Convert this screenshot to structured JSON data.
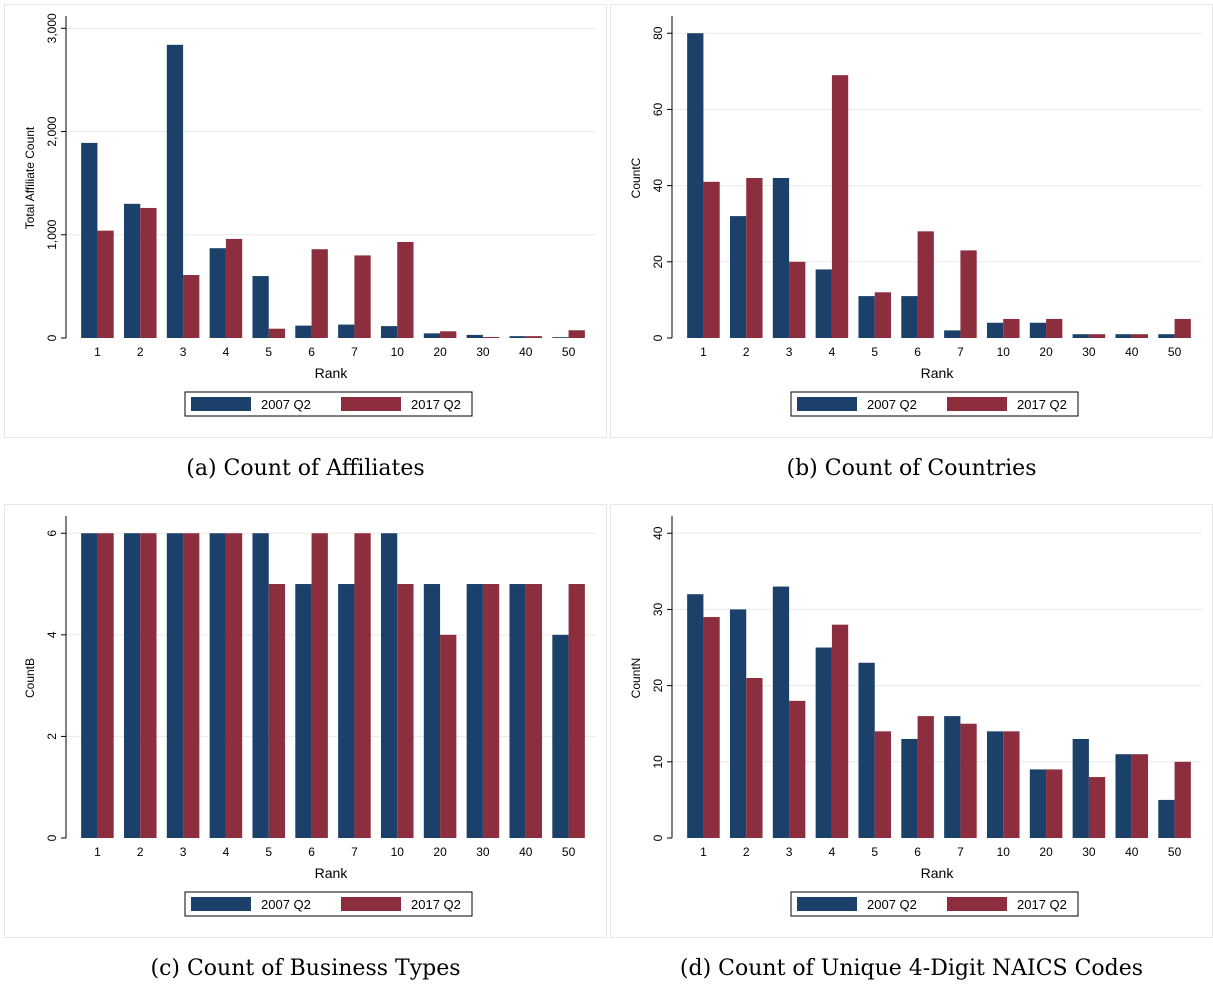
{
  "colors": {
    "series_2007": "#1b416b",
    "series_2017": "#8c2e3d",
    "grid": "#eaeaea",
    "frame": "#e6e6e6"
  },
  "chart_data": [
    {
      "type": "bar",
      "caption": "(a) Count of Affiliates",
      "xlabel": "Rank",
      "ylabel": "Total Affiliate Count",
      "categories": [
        "1",
        "2",
        "3",
        "4",
        "5",
        "6",
        "7",
        "10",
        "20",
        "30",
        "40",
        "50"
      ],
      "ylim": [
        0,
        3100
      ],
      "yticks": [
        0,
        1000,
        2000,
        3000
      ],
      "yticklabels": [
        "0",
        "1,000",
        "2,000",
        "3,000"
      ],
      "grid": true,
      "legend": "bottom",
      "series": [
        {
          "name": "2007 Q2",
          "values": [
            1890,
            1300,
            2840,
            870,
            600,
            120,
            130,
            115,
            45,
            30,
            18,
            8
          ]
        },
        {
          "name": "2017 Q2",
          "values": [
            1040,
            1260,
            610,
            960,
            90,
            860,
            800,
            930,
            65,
            10,
            18,
            75
          ]
        }
      ]
    },
    {
      "type": "bar",
      "caption": "(b) Count of Countries",
      "xlabel": "Rank",
      "ylabel": "CountC",
      "categories": [
        "1",
        "2",
        "3",
        "4",
        "5",
        "6",
        "7",
        "10",
        "20",
        "30",
        "40",
        "50"
      ],
      "ylim": [
        0,
        84
      ],
      "yticks": [
        0,
        20,
        40,
        60,
        80
      ],
      "yticklabels": [
        "0",
        "20",
        "40",
        "60",
        "80"
      ],
      "grid": true,
      "legend": "bottom",
      "series": [
        {
          "name": "2007 Q2",
          "values": [
            80,
            32,
            42,
            18,
            11,
            11,
            2,
            4,
            4,
            1,
            1,
            1
          ]
        },
        {
          "name": "2017 Q2",
          "values": [
            41,
            42,
            20,
            69,
            12,
            28,
            23,
            5,
            5,
            1,
            1,
            5
          ]
        }
      ]
    },
    {
      "type": "bar",
      "caption": "(c) Count of Business Types",
      "xlabel": "Rank",
      "ylabel": "CountB",
      "categories": [
        "1",
        "2",
        "3",
        "4",
        "5",
        "6",
        "7",
        "10",
        "20",
        "30",
        "40",
        "50"
      ],
      "ylim": [
        0,
        6.3
      ],
      "yticks": [
        0,
        2,
        4,
        6
      ],
      "yticklabels": [
        "0",
        "2",
        "4",
        "6"
      ],
      "grid": true,
      "legend": "bottom",
      "series": [
        {
          "name": "2007 Q2",
          "values": [
            6,
            6,
            6,
            6,
            6,
            5,
            5,
            6,
            5,
            5,
            5,
            4
          ]
        },
        {
          "name": "2017 Q2",
          "values": [
            6,
            6,
            6,
            6,
            5,
            6,
            6,
            5,
            4,
            5,
            5,
            5
          ]
        }
      ]
    },
    {
      "type": "bar",
      "caption": "(d) Count of Unique 4-Digit NAICS Codes",
      "xlabel": "Rank",
      "ylabel": "CountN",
      "categories": [
        "1",
        "2",
        "3",
        "4",
        "5",
        "6",
        "7",
        "10",
        "20",
        "30",
        "40",
        "50"
      ],
      "ylim": [
        0,
        42
      ],
      "yticks": [
        0,
        10,
        20,
        30,
        40
      ],
      "yticklabels": [
        "0",
        "10",
        "20",
        "30",
        "40"
      ],
      "grid": true,
      "legend": "bottom",
      "series": [
        {
          "name": "2007 Q2",
          "values": [
            32,
            30,
            33,
            25,
            23,
            13,
            16,
            14,
            9,
            13,
            11,
            5
          ]
        },
        {
          "name": "2017 Q2",
          "values": [
            29,
            21,
            18,
            28,
            14,
            16,
            15,
            14,
            9,
            8,
            11,
            10
          ]
        }
      ]
    }
  ]
}
